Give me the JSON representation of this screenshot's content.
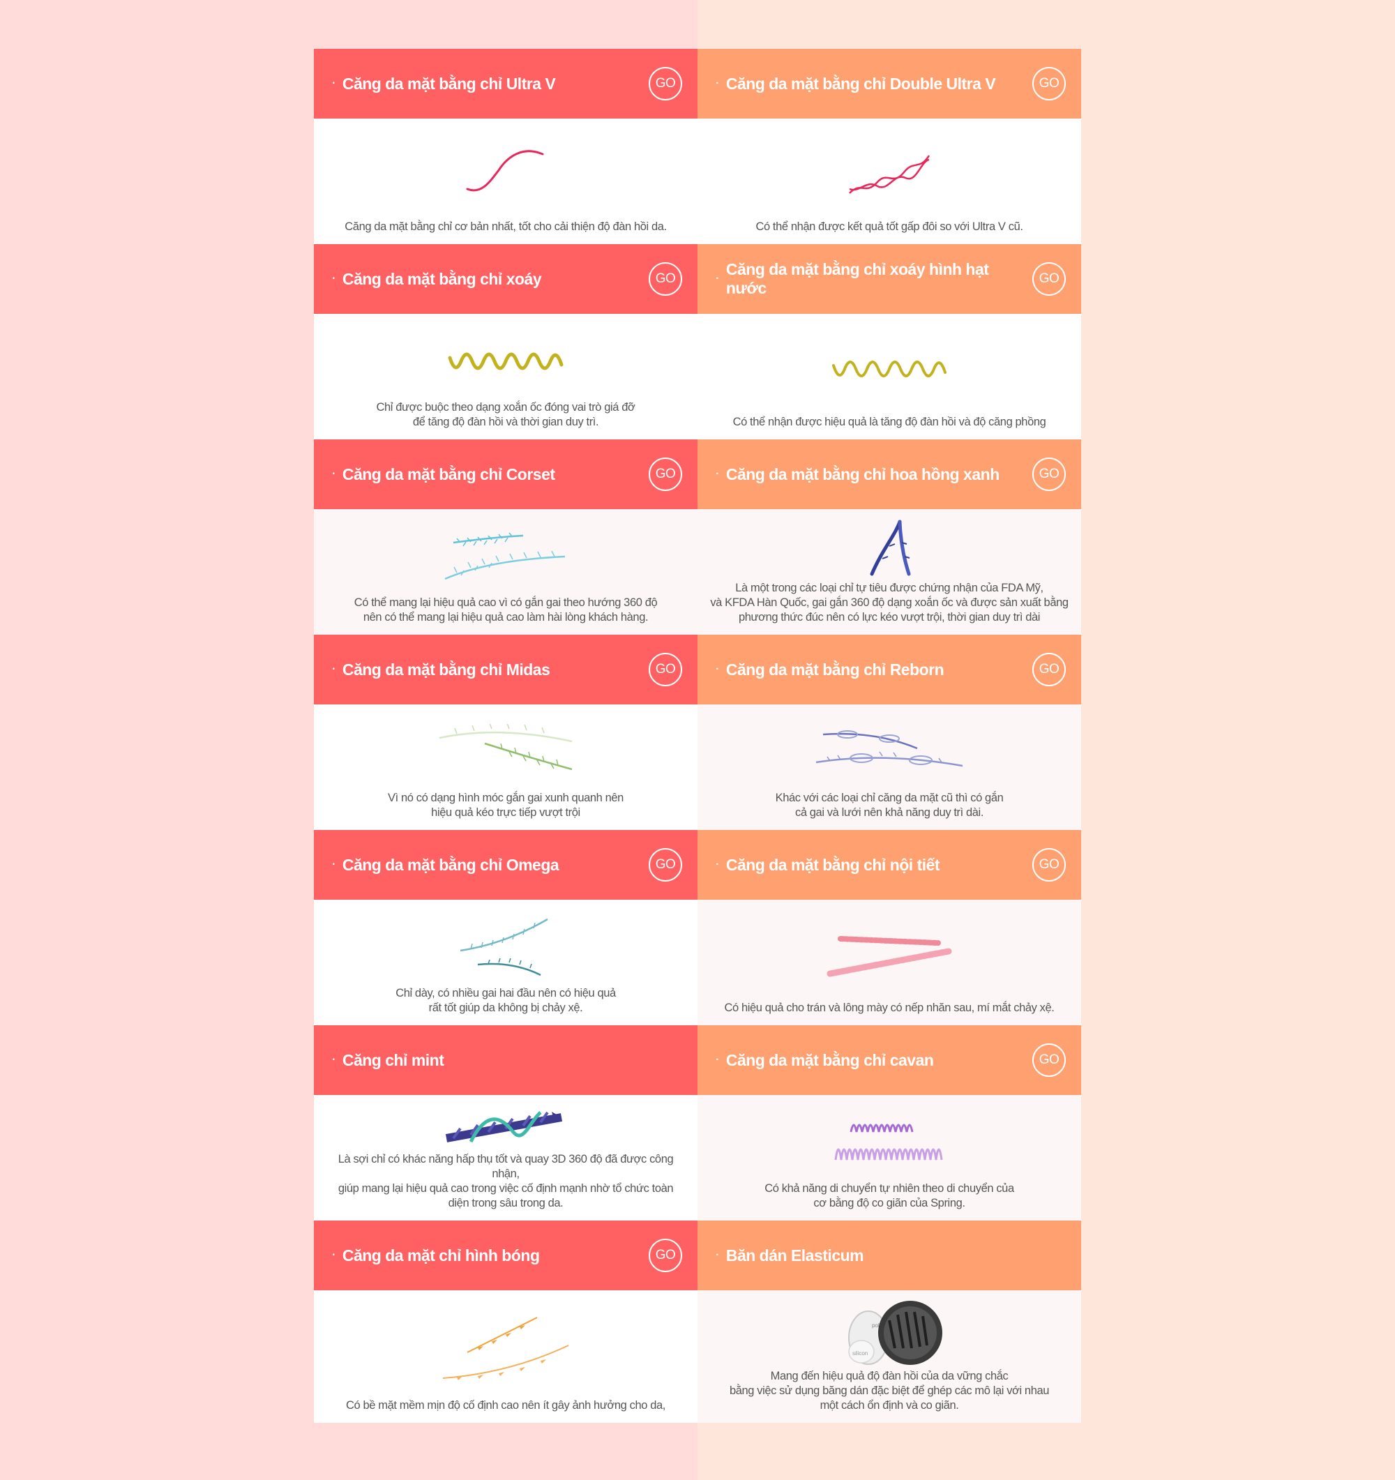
{
  "colors": {
    "left_bg": "#ffdbd9",
    "right_bg": "#ffe6da",
    "red_header": "#ff6163",
    "orange_header": "#ffa070"
  },
  "bullet": "·",
  "go_label": "GO",
  "cards": [
    {
      "title": "Căng da mặt bằng chỉ Ultra V",
      "desc": "Căng da mặt bằng chỉ cơ bản nhất, tốt cho cải thiện độ đàn hồi da."
    },
    {
      "title": "Căng da mặt bằng chỉ Double Ultra V",
      "desc": "Có thể nhận được kết quả tốt gấp đôi so với Ultra V cũ."
    },
    {
      "title": "Căng da mặt bằng chỉ xoáy",
      "desc": "Chỉ được buộc theo dạng xoắn ốc đóng vai trò giá đỡ\nđể tăng độ đàn hồi và thời gian duy trì."
    },
    {
      "title": "Căng da mặt bằng chỉ xoáy hình hạt nước",
      "desc": "Có thể nhận được hiệu quả là tăng độ đàn hồi và độ căng phồng"
    },
    {
      "title": "Căng da mặt bằng chỉ Corset",
      "desc": "Có thể mang lại hiệu quả cao vì có gắn gai theo hướng 360 độ\nnên có thể mang lại hiệu quả cao làm hài lòng khách hàng."
    },
    {
      "title": "Căng da mặt bằng chỉ hoa hồng xanh",
      "desc": "Là một trong các loại chỉ tự tiêu được chứng nhận của FDA Mỹ,\nvà KFDA Hàn Quốc, gai gắn 360 độ dạng xoắn ốc và được sản xuất bằng\nphương thức đúc nên có lực kéo vượt trội, thời gian duy trì dài"
    },
    {
      "title": "Căng da mặt bằng chỉ Midas",
      "desc": "Vì nó có dạng hình móc gắn gai xunh quanh nên\nhiệu quả kéo trực tiếp vượt trội"
    },
    {
      "title": "Căng da mặt bằng chỉ Reborn",
      "desc": "Khác với các loại chỉ căng da mặt cũ thì có gắn\ncả gai và lưới nên khả năng duy trì dài."
    },
    {
      "title": "Căng da mặt bằng chỉ Omega",
      "desc": "Chỉ dày, có nhiều gai hai đầu nên có hiệu quả\nrất tốt giúp da không bị chảy xệ."
    },
    {
      "title": "Căng da mặt bằng chỉ nội tiết",
      "desc": "Có hiệu quả cho trán và lông mày có nếp nhăn sau, mí mắt chảy xệ."
    },
    {
      "title": "Căng chỉ mint",
      "desc": "Là sợi chỉ có khác năng hấp thụ tốt và quay 3D 360 độ đã được công nhận,\ngiúp mang lại hiệu quả cao trong việc cố định mạnh nhờ tổ chức toàn\ndiện trong sâu trong da."
    },
    {
      "title": "Căng da mặt bằng chỉ cavan",
      "desc": "Có khả năng di chuyển tự nhiên theo di chuyển của\ncơ bằng độ co giãn của Spring."
    },
    {
      "title": "Căng da mặt chỉ hình bóng",
      "desc": "Có bề mặt mềm mịn độ cố định cao nên ít gây ảnh hưởng cho da,"
    },
    {
      "title": "Băn dán Elasticum",
      "desc": "Mang đến hiệu quả độ đàn hồi của da vững chắc\nbằng việc sử dụng băng dán đặc biệt để ghép các mô lại với nhau\nmột cách ổn định và co giãn.",
      "image_labels": [
        "polyester",
        "silicon"
      ]
    }
  ]
}
